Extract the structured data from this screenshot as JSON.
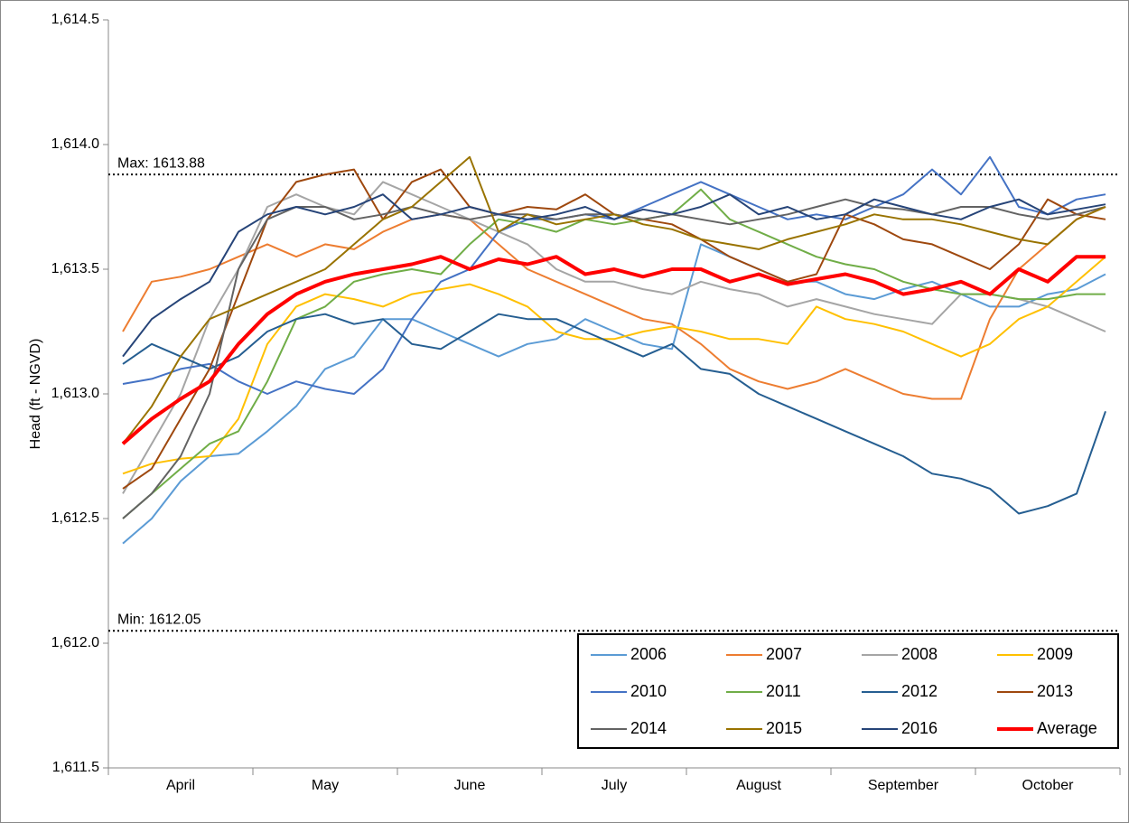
{
  "chart_data": {
    "type": "line",
    "ylabel": "Head (ft - NGVD)",
    "categories": [
      null,
      null,
      "April",
      null,
      null,
      null,
      null,
      "May",
      null,
      null,
      null,
      null,
      "June",
      null,
      null,
      null,
      null,
      "July",
      null,
      null,
      null,
      null,
      "August",
      null,
      null,
      null,
      null,
      "September",
      null,
      null,
      null,
      null,
      "October",
      null,
      null
    ],
    "ylim": [
      1611.5,
      1614.5
    ],
    "yticks": [
      {
        "value": 1611.5,
        "label": "1,611.5"
      },
      {
        "value": 1612.0,
        "label": "1,612.0"
      },
      {
        "value": 1612.5,
        "label": "1,612.5"
      },
      {
        "value": 1613.0,
        "label": "1,613.0"
      },
      {
        "value": 1613.5,
        "label": "1,613.5"
      },
      {
        "value": 1614.0,
        "label": "1,614.0"
      },
      {
        "value": 1614.5,
        "label": "1,614.5"
      }
    ],
    "annotations": [
      {
        "text": "Max: 1613.88",
        "value": 1613.88
      },
      {
        "text": "Min: 1612.05",
        "value": 1612.05
      }
    ],
    "legend": "lower right",
    "series": [
      {
        "name": "2006",
        "color": "#5b9bd5",
        "line_width": 2,
        "values": [
          1612.4,
          1612.5,
          1612.65,
          1612.75,
          1612.76,
          1612.85,
          1612.95,
          1613.1,
          1613.15,
          1613.3,
          1613.3,
          1613.25,
          1613.2,
          1613.15,
          1613.2,
          1613.22,
          1613.3,
          1613.25,
          1613.2,
          1613.18,
          1613.6,
          1613.55,
          1613.5,
          1613.45,
          1613.45,
          1613.4,
          1613.38,
          1613.42,
          1613.45,
          1613.4,
          1613.35,
          1613.35,
          1613.4,
          1613.42,
          1613.48
        ]
      },
      {
        "name": "2007",
        "color": "#ed7d31",
        "line_width": 2,
        "values": [
          1613.25,
          1613.45,
          1613.47,
          1613.5,
          1613.55,
          1613.6,
          1613.55,
          1613.6,
          1613.58,
          1613.65,
          1613.7,
          1613.72,
          1613.7,
          1613.6,
          1613.5,
          1613.45,
          1613.4,
          1613.35,
          1613.3,
          1613.28,
          1613.2,
          1613.1,
          1613.05,
          1613.02,
          1613.05,
          1613.1,
          1613.05,
          1613.0,
          1612.98,
          1612.98,
          1613.3,
          1613.5,
          1613.6,
          1613.7,
          1613.75
        ]
      },
      {
        "name": "2008",
        "color": "#a5a5a5",
        "line_width": 2,
        "values": [
          1612.6,
          1612.8,
          1613.0,
          1613.3,
          1613.5,
          1613.75,
          1613.8,
          1613.75,
          1613.72,
          1613.85,
          1613.8,
          1613.75,
          1613.7,
          1613.65,
          1613.6,
          1613.5,
          1613.45,
          1613.45,
          1613.42,
          1613.4,
          1613.45,
          1613.42,
          1613.4,
          1613.35,
          1613.38,
          1613.35,
          1613.32,
          1613.3,
          1613.28,
          1613.4,
          1613.4,
          1613.38,
          1613.35,
          1613.3,
          1613.25
        ]
      },
      {
        "name": "2009",
        "color": "#ffc000",
        "line_width": 2,
        "values": [
          1612.68,
          1612.72,
          1612.74,
          1612.75,
          1612.9,
          1613.2,
          1613.35,
          1613.4,
          1613.38,
          1613.35,
          1613.4,
          1613.42,
          1613.44,
          1613.4,
          1613.35,
          1613.25,
          1613.22,
          1613.22,
          1613.25,
          1613.27,
          1613.25,
          1613.22,
          1613.22,
          1613.2,
          1613.35,
          1613.3,
          1613.28,
          1613.25,
          1613.2,
          1613.15,
          1613.2,
          1613.3,
          1613.35,
          1613.45,
          1613.55
        ]
      },
      {
        "name": "2010",
        "color": "#4472c4",
        "line_width": 2,
        "values": [
          1613.04,
          1613.06,
          1613.1,
          1613.12,
          1613.05,
          1613.0,
          1613.05,
          1613.02,
          1613.0,
          1613.1,
          1613.3,
          1613.45,
          1613.5,
          1613.65,
          1613.7,
          1613.7,
          1613.72,
          1613.7,
          1613.75,
          1613.8,
          1613.85,
          1613.8,
          1613.75,
          1613.7,
          1613.72,
          1613.7,
          1613.75,
          1613.8,
          1613.9,
          1613.8,
          1613.95,
          1613.75,
          1613.72,
          1613.78,
          1613.8
        ]
      },
      {
        "name": "2011",
        "color": "#70ad47",
        "line_width": 2,
        "values": [
          1612.5,
          1612.6,
          1612.7,
          1612.8,
          1612.85,
          1613.05,
          1613.3,
          1613.35,
          1613.45,
          1613.48,
          1613.5,
          1613.48,
          1613.6,
          1613.7,
          1613.68,
          1613.65,
          1613.7,
          1613.68,
          1613.7,
          1613.72,
          1613.82,
          1613.7,
          1613.65,
          1613.6,
          1613.55,
          1613.52,
          1613.5,
          1613.45,
          1613.42,
          1613.4,
          1613.4,
          1613.38,
          1613.38,
          1613.4,
          1613.4
        ]
      },
      {
        "name": "2012",
        "color": "#255e91",
        "line_width": 2,
        "values": [
          1613.12,
          1613.2,
          1613.15,
          1613.1,
          1613.15,
          1613.25,
          1613.3,
          1613.32,
          1613.28,
          1613.3,
          1613.2,
          1613.18,
          1613.25,
          1613.32,
          1613.3,
          1613.3,
          1613.25,
          1613.2,
          1613.15,
          1613.2,
          1613.1,
          1613.08,
          1613.0,
          1612.95,
          1612.9,
          1612.85,
          1612.8,
          1612.75,
          1612.68,
          1612.66,
          1612.62,
          1612.52,
          1612.55,
          1612.6,
          1612.93
        ]
      },
      {
        "name": "2013",
        "color": "#9e480e",
        "line_width": 2,
        "values": [
          1612.62,
          1612.7,
          1612.9,
          1613.1,
          1613.4,
          1613.7,
          1613.85,
          1613.88,
          1613.9,
          1613.7,
          1613.85,
          1613.9,
          1613.75,
          1613.72,
          1613.75,
          1613.74,
          1613.8,
          1613.72,
          1613.7,
          1613.68,
          1613.62,
          1613.55,
          1613.5,
          1613.45,
          1613.48,
          1613.72,
          1613.68,
          1613.62,
          1613.6,
          1613.55,
          1613.5,
          1613.6,
          1613.78,
          1613.72,
          1613.7
        ]
      },
      {
        "name": "2014",
        "color": "#636363",
        "line_width": 2,
        "values": [
          1612.5,
          1612.6,
          1612.75,
          1613.0,
          1613.5,
          1613.7,
          1613.75,
          1613.75,
          1613.7,
          1613.72,
          1613.75,
          1613.72,
          1613.7,
          1613.72,
          1613.72,
          1613.7,
          1613.72,
          1613.72,
          1613.7,
          1613.72,
          1613.7,
          1613.68,
          1613.7,
          1613.72,
          1613.75,
          1613.78,
          1613.75,
          1613.74,
          1613.72,
          1613.75,
          1613.75,
          1613.72,
          1613.7,
          1613.72,
          1613.75
        ]
      },
      {
        "name": "2015",
        "color": "#997300",
        "line_width": 2,
        "values": [
          1612.8,
          1612.95,
          1613.15,
          1613.3,
          1613.35,
          1613.4,
          1613.45,
          1613.5,
          1613.6,
          1613.7,
          1613.75,
          1613.85,
          1613.95,
          1613.65,
          1613.72,
          1613.68,
          1613.7,
          1613.72,
          1613.68,
          1613.66,
          1613.62,
          1613.6,
          1613.58,
          1613.62,
          1613.65,
          1613.68,
          1613.72,
          1613.7,
          1613.7,
          1613.68,
          1613.65,
          1613.62,
          1613.6,
          1613.7,
          1613.75
        ]
      },
      {
        "name": "2016",
        "color": "#264478",
        "line_width": 2,
        "values": [
          1613.15,
          1613.3,
          1613.38,
          1613.45,
          1613.65,
          1613.72,
          1613.75,
          1613.72,
          1613.75,
          1613.8,
          1613.7,
          1613.72,
          1613.75,
          1613.72,
          1613.7,
          1613.72,
          1613.75,
          1613.7,
          1613.74,
          1613.72,
          1613.75,
          1613.8,
          1613.72,
          1613.75,
          1613.7,
          1613.72,
          1613.78,
          1613.75,
          1613.72,
          1613.7,
          1613.75,
          1613.78,
          1613.72,
          1613.74,
          1613.76
        ]
      },
      {
        "name": "Average",
        "color": "#ff0000",
        "line_width": 4,
        "values": [
          1612.8,
          1612.9,
          1612.98,
          1613.05,
          1613.2,
          1613.32,
          1613.4,
          1613.45,
          1613.48,
          1613.5,
          1613.52,
          1613.55,
          1613.5,
          1613.54,
          1613.52,
          1613.55,
          1613.48,
          1613.5,
          1613.47,
          1613.5,
          1613.5,
          1613.45,
          1613.48,
          1613.44,
          1613.46,
          1613.48,
          1613.45,
          1613.4,
          1613.42,
          1613.45,
          1613.4,
          1613.5,
          1613.45,
          1613.55,
          1613.55
        ]
      }
    ]
  }
}
